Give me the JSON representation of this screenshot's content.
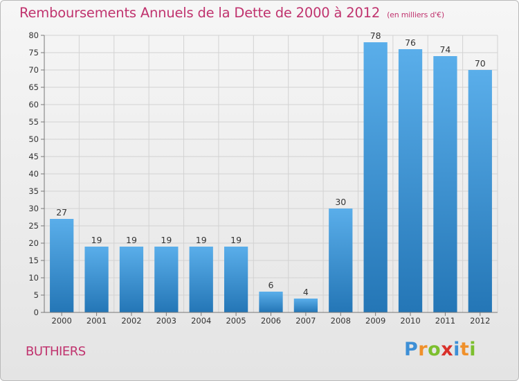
{
  "colors": {
    "accent": "#c0336e",
    "bar_light": "#5aaeea",
    "bar_dark": "#2476b6"
  },
  "header": {
    "title": "Remboursements Annuels de la Dette de 2000 à 2012",
    "unit": "(en milliers d'€)"
  },
  "commune": "BUTHIERS",
  "logo": {
    "letters": [
      "P",
      "r",
      "o",
      "x",
      "i",
      "t",
      "i"
    ],
    "colors": [
      "#3d8fd6",
      "#f0902a",
      "#7cbf2e",
      "#d9302a",
      "#3d8fd6",
      "#f0902a",
      "#7cbf2e"
    ]
  },
  "chart_data": {
    "type": "bar",
    "title": "Remboursements Annuels de la Dette de 2000 à 2012",
    "unit": "(en milliers d'€)",
    "categories": [
      "2000",
      "2001",
      "2002",
      "2003",
      "2004",
      "2005",
      "2006",
      "2007",
      "2008",
      "2009",
      "2010",
      "2011",
      "2012"
    ],
    "values": [
      27,
      19,
      19,
      19,
      19,
      19,
      6,
      4,
      30,
      78,
      76,
      74,
      70
    ],
    "ylim": [
      0,
      80
    ],
    "yticks": [
      0,
      5,
      10,
      15,
      20,
      25,
      30,
      35,
      40,
      45,
      50,
      55,
      60,
      65,
      70,
      75,
      80
    ],
    "grid": true,
    "legend": "none"
  }
}
